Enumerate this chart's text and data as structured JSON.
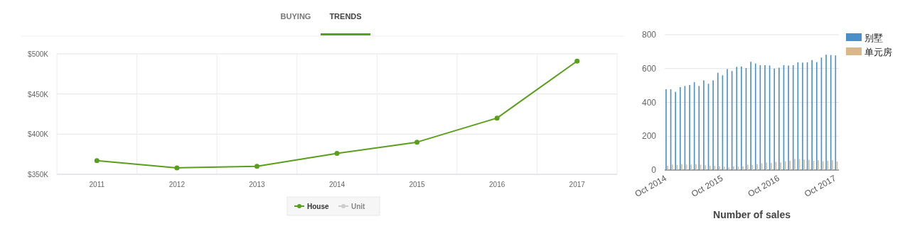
{
  "chart_data": [
    {
      "type": "line",
      "annotations": [
        "BUYING",
        "TRENDS"
      ],
      "categories": [
        "2011",
        "2012",
        "2013",
        "2014",
        "2015",
        "2016",
        "2017"
      ],
      "series": [
        {
          "name": "House",
          "color": "#5a9e1e",
          "values": [
            367,
            358,
            360,
            376,
            390,
            420,
            491
          ]
        },
        {
          "name": "Unit",
          "color": "#cccccc",
          "values": [
            null,
            null,
            null,
            null,
            null,
            null,
            null
          ]
        }
      ],
      "ylim": [
        350,
        500
      ],
      "yticks": [
        {
          "value": 350,
          "label": "$350K"
        },
        {
          "value": 400,
          "label": "$400K"
        },
        {
          "value": 450,
          "label": "$450K"
        },
        {
          "value": 500,
          "label": "$500K"
        }
      ],
      "grid": true,
      "legend": "bottom",
      "marker": "circle"
    },
    {
      "type": "bar",
      "xlabel": "Number of sales",
      "categories": [
        "Oct 2014",
        null,
        null,
        null,
        null,
        null,
        null,
        null,
        null,
        null,
        null,
        null,
        "Oct 2015",
        null,
        null,
        null,
        null,
        null,
        null,
        null,
        null,
        null,
        null,
        null,
        "Oct 2016",
        null,
        null,
        null,
        null,
        null,
        null,
        null,
        null,
        null,
        null,
        null,
        "Oct 2017"
      ],
      "series": [
        {
          "name": "别墅",
          "color": "#4a8fc8",
          "values": [
            478,
            478,
            462,
            490,
            497,
            503,
            520,
            497,
            530,
            510,
            530,
            575,
            560,
            597,
            585,
            610,
            612,
            603,
            640,
            630,
            620,
            620,
            618,
            600,
            605,
            620,
            618,
            620,
            637,
            635,
            637,
            650,
            638,
            665,
            682,
            680,
            678
          ]
        },
        {
          "name": "单元房",
          "color": "#d9b98a",
          "values": [
            25,
            32,
            30,
            35,
            33,
            32,
            35,
            32,
            28,
            25,
            25,
            22,
            20,
            15,
            22,
            20,
            22,
            32,
            30,
            35,
            40,
            45,
            42,
            48,
            45,
            52,
            55,
            65,
            65,
            62,
            60,
            55,
            58,
            52,
            55,
            58,
            50
          ]
        }
      ],
      "ylim": [
        0,
        800
      ],
      "yticks": [
        0,
        200,
        400,
        600,
        800
      ],
      "grid": "y",
      "legend": "top right"
    }
  ]
}
